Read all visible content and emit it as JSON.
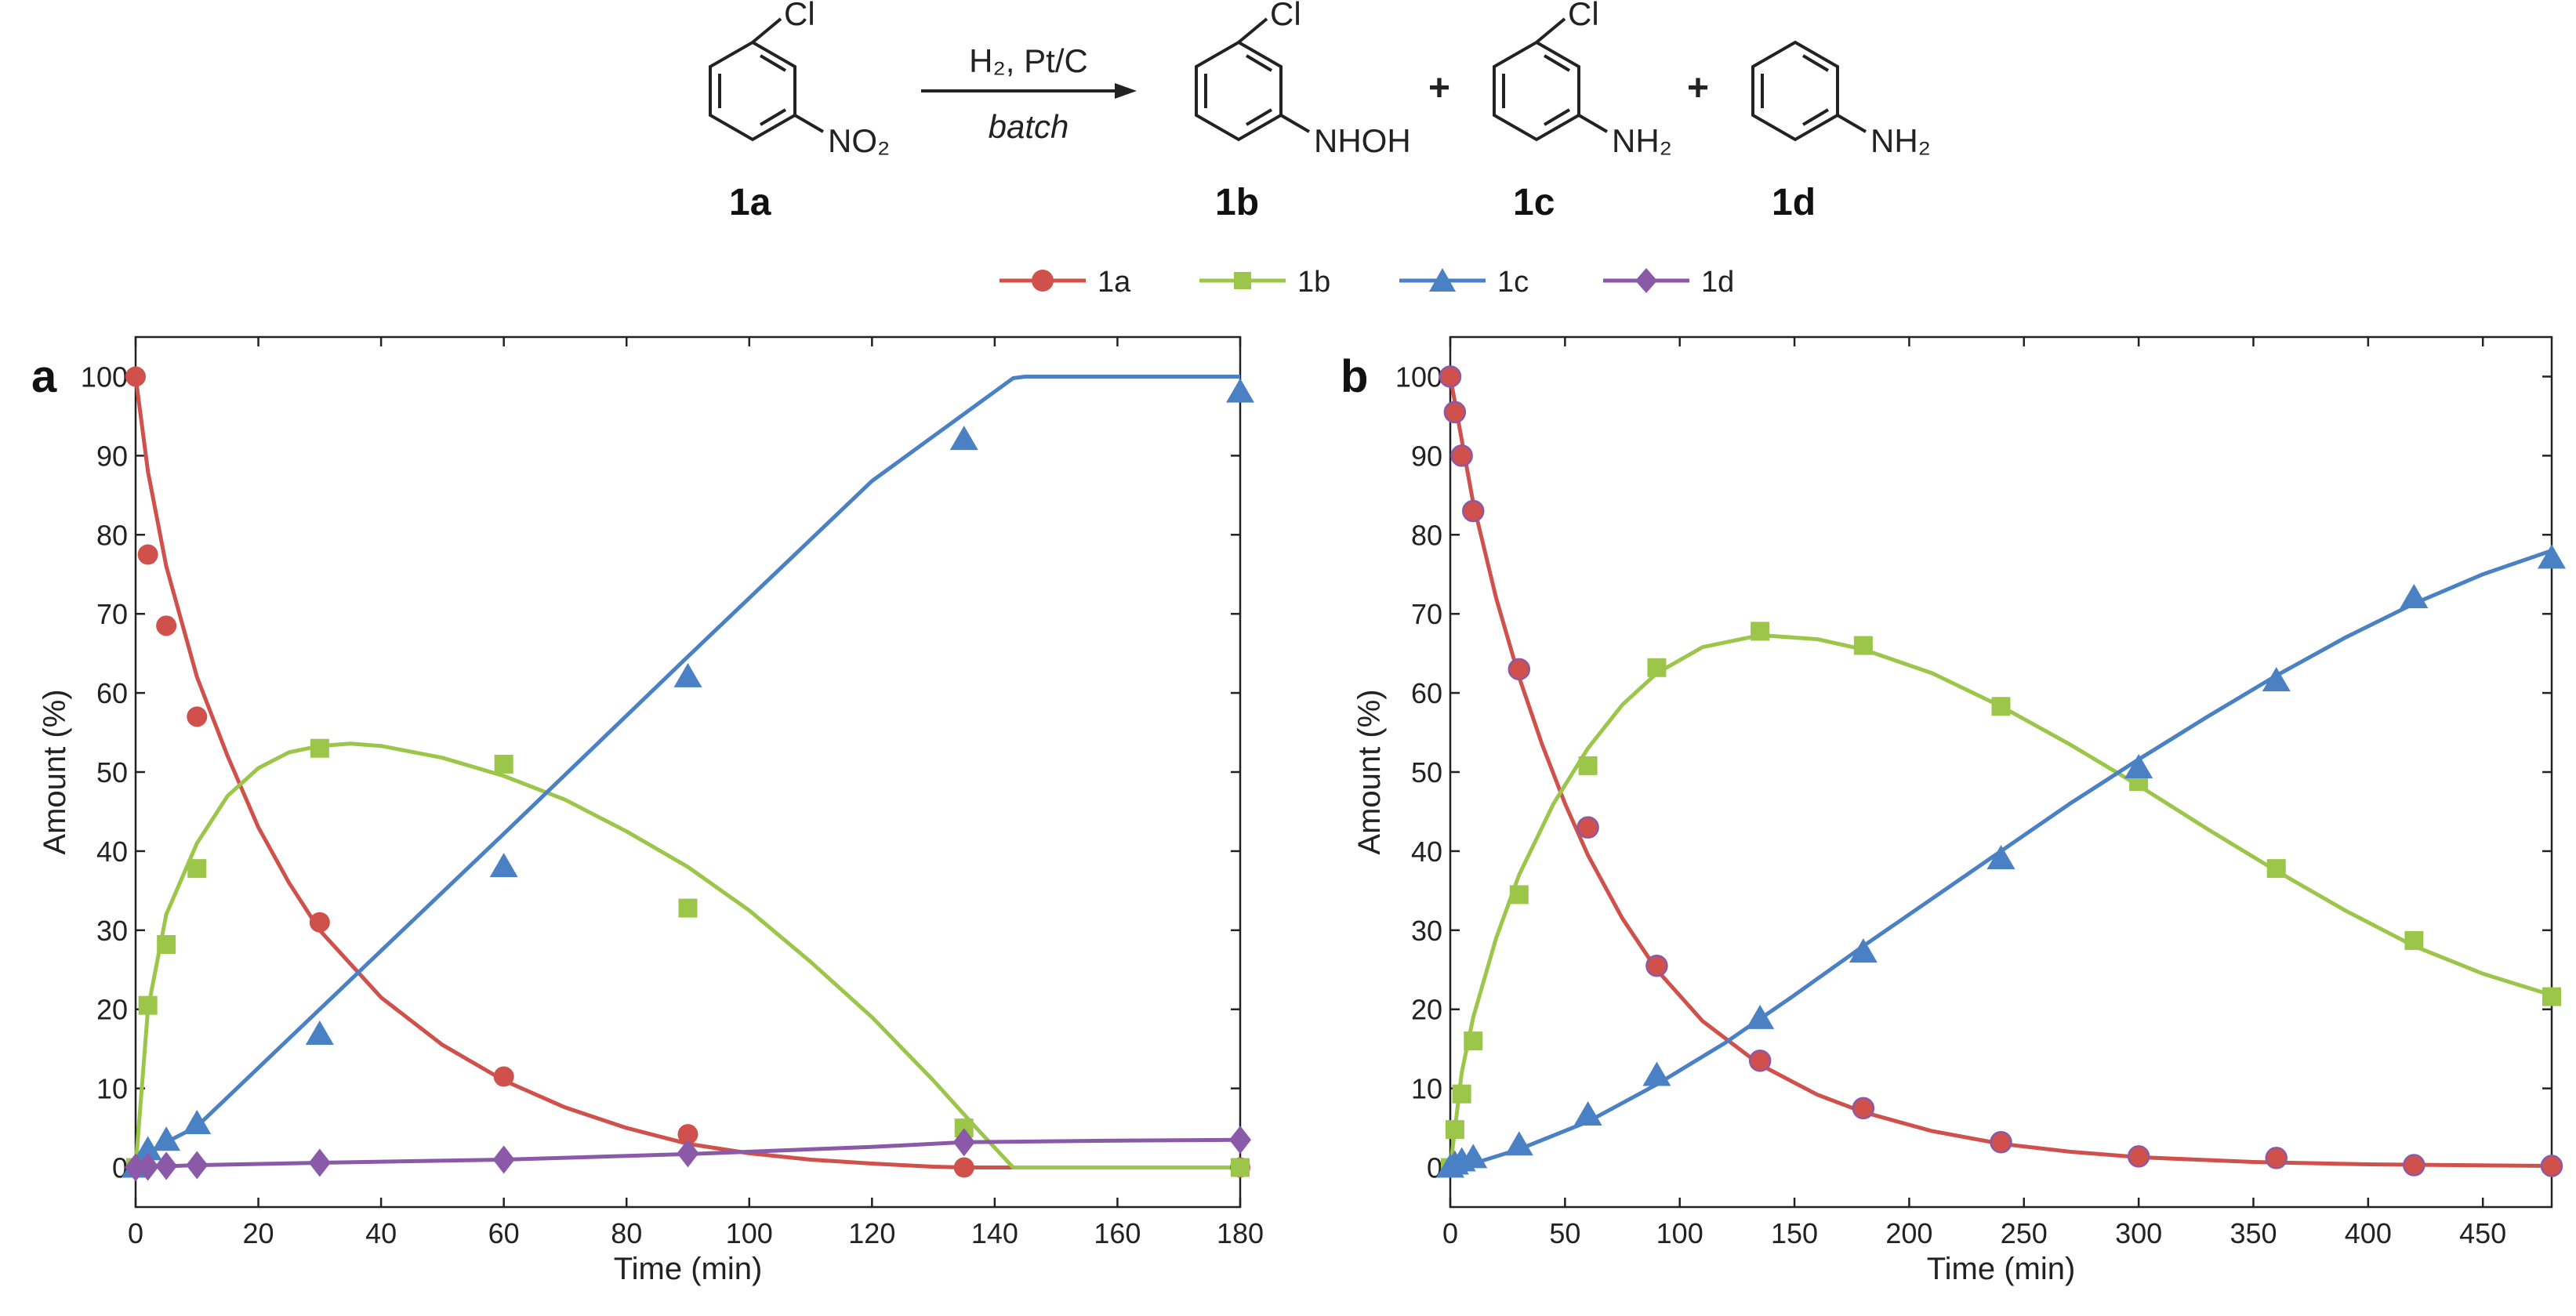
{
  "scheme": {
    "reagents": "H₂, Pt/C",
    "conditions": "batch",
    "plus": "+",
    "compounds": [
      {
        "label": "1a",
        "substituent_top": "Cl",
        "substituent_side": "NO₂"
      },
      {
        "label": "1b",
        "substituent_top": "Cl",
        "substituent_side": "NHOH"
      },
      {
        "label": "1c",
        "substituent_top": "Cl",
        "substituent_side": "NH₂"
      },
      {
        "label": "1d",
        "substituent_top": "",
        "substituent_side": "NH₂"
      }
    ]
  },
  "legend": [
    {
      "name": "1a",
      "color": "#d0504b",
      "marker": "circle"
    },
    {
      "name": "1b",
      "color": "#9bc649",
      "marker": "square"
    },
    {
      "name": "1c",
      "color": "#4a80c4",
      "marker": "triangle"
    },
    {
      "name": "1d",
      "color": "#8a5aa8",
      "marker": "diamond"
    }
  ],
  "chart_data": [
    {
      "panel": "a",
      "type": "scatter",
      "xlabel": "Time (min)",
      "ylabel": "Amount (%)",
      "xlim": [
        0,
        180
      ],
      "ylim": [
        -5,
        105
      ],
      "xticks": [
        0,
        20,
        40,
        60,
        80,
        100,
        120,
        140,
        160,
        180
      ],
      "yticks": [
        0,
        10,
        20,
        30,
        40,
        50,
        60,
        70,
        80,
        90,
        100
      ],
      "series": [
        {
          "name": "1a",
          "color": "#d0504b",
          "marker": "circle",
          "points": [
            [
              0,
              100
            ],
            [
              2,
              77.5
            ],
            [
              5,
              68.5
            ],
            [
              10,
              57
            ],
            [
              30,
              31
            ],
            [
              60,
              11.5
            ],
            [
              90,
              4.2
            ],
            [
              135,
              0
            ],
            [
              180,
              0
            ]
          ],
          "fit": [
            [
              0,
              100
            ],
            [
              2,
              88
            ],
            [
              5,
              76
            ],
            [
              10,
              62
            ],
            [
              15,
              52
            ],
            [
              20,
              43
            ],
            [
              25,
              36
            ],
            [
              30,
              30
            ],
            [
              40,
              21.5
            ],
            [
              50,
              15.5
            ],
            [
              60,
              11
            ],
            [
              70,
              7.6
            ],
            [
              80,
              5
            ],
            [
              90,
              3
            ],
            [
              100,
              1.8
            ],
            [
              110,
              1
            ],
            [
              120,
              0.5
            ],
            [
              130,
              0.1
            ],
            [
              135,
              0
            ],
            [
              180,
              0
            ]
          ]
        },
        {
          "name": "1b",
          "color": "#9bc649",
          "marker": "square",
          "points": [
            [
              0,
              0
            ],
            [
              2,
              20.5
            ],
            [
              5,
              28.2
            ],
            [
              10,
              37.8
            ],
            [
              30,
              53
            ],
            [
              60,
              51
            ],
            [
              90,
              32.8
            ],
            [
              135,
              5
            ],
            [
              180,
              0
            ]
          ],
          "fit": [
            [
              0,
              0
            ],
            [
              2,
              20
            ],
            [
              5,
              32
            ],
            [
              10,
              41
            ],
            [
              15,
              47
            ],
            [
              20,
              50.5
            ],
            [
              25,
              52.5
            ],
            [
              30,
              53.3
            ],
            [
              35,
              53.6
            ],
            [
              40,
              53.3
            ],
            [
              50,
              51.8
            ],
            [
              60,
              49.5
            ],
            [
              70,
              46.5
            ],
            [
              80,
              42.5
            ],
            [
              90,
              38
            ],
            [
              100,
              32.5
            ],
            [
              110,
              26
            ],
            [
              120,
              19
            ],
            [
              130,
              11
            ],
            [
              137,
              5
            ],
            [
              143,
              0
            ],
            [
              180,
              0
            ]
          ]
        },
        {
          "name": "1c",
          "color": "#4a80c4",
          "marker": "triangle",
          "points": [
            [
              0,
              0
            ],
            [
              2,
              2.2
            ],
            [
              5,
              3.4
            ],
            [
              10,
              5.5
            ],
            [
              30,
              16.8
            ],
            [
              60,
              38
            ],
            [
              90,
              62
            ],
            [
              135,
              92
            ],
            [
              180,
              98
            ]
          ],
          "fit": [
            [
              0,
              0
            ],
            [
              2,
              1.9
            ],
            [
              5,
              3.2
            ],
            [
              10,
              5.2
            ],
            [
              30,
              20
            ],
            [
              60,
              42.2
            ],
            [
              90,
              64.6
            ],
            [
              120,
              86.8
            ],
            [
              143,
              99.8
            ],
            [
              145,
              100
            ],
            [
              180,
              100
            ]
          ]
        },
        {
          "name": "1d",
          "color": "#8a5aa8",
          "marker": "diamond",
          "points": [
            [
              0,
              0
            ],
            [
              2,
              0.1
            ],
            [
              5,
              0.2
            ],
            [
              10,
              0.3
            ],
            [
              30,
              0.6
            ],
            [
              60,
              1
            ],
            [
              90,
              1.8
            ],
            [
              135,
              3.2
            ],
            [
              180,
              3.5
            ]
          ],
          "fit": [
            [
              0,
              0
            ],
            [
              10,
              0.3
            ],
            [
              30,
              0.6
            ],
            [
              60,
              1
            ],
            [
              90,
              1.7
            ],
            [
              120,
              2.6
            ],
            [
              135,
              3.2
            ],
            [
              160,
              3.4
            ],
            [
              180,
              3.5
            ]
          ]
        }
      ]
    },
    {
      "panel": "b",
      "type": "scatter",
      "xlabel": "Time (min)",
      "ylabel": "Amount (%)",
      "xlim": [
        0,
        480
      ],
      "ylim": [
        -5,
        105
      ],
      "xticks": [
        0,
        50,
        100,
        150,
        200,
        250,
        300,
        350,
        400,
        450
      ],
      "yticks": [
        0,
        10,
        20,
        30,
        40,
        50,
        60,
        70,
        80,
        90,
        100
      ],
      "series": [
        {
          "name": "1a",
          "color": "#d0504b",
          "marker": "circle",
          "points": [
            [
              0,
              100
            ],
            [
              2,
              95.5
            ],
            [
              5,
              90
            ],
            [
              10,
              83
            ],
            [
              30,
              63
            ],
            [
              60,
              43
            ],
            [
              90,
              25.5
            ],
            [
              135,
              13.5
            ],
            [
              180,
              7.5
            ],
            [
              240,
              3.2
            ],
            [
              300,
              1.4
            ],
            [
              360,
              1.2
            ],
            [
              420,
              0.3
            ],
            [
              480,
              0.2
            ]
          ],
          "fit": [
            [
              0,
              100
            ],
            [
              5,
              92
            ],
            [
              10,
              84
            ],
            [
              20,
              72
            ],
            [
              30,
              62
            ],
            [
              40,
              53.5
            ],
            [
              50,
              46
            ],
            [
              60,
              39.5
            ],
            [
              75,
              31.5
            ],
            [
              90,
              25
            ],
            [
              110,
              18.5
            ],
            [
              135,
              13
            ],
            [
              160,
              9.2
            ],
            [
              180,
              7
            ],
            [
              210,
              4.6
            ],
            [
              240,
              3
            ],
            [
              270,
              2
            ],
            [
              300,
              1.3
            ],
            [
              350,
              0.7
            ],
            [
              400,
              0.4
            ],
            [
              480,
              0.2
            ]
          ]
        },
        {
          "name": "1b",
          "color": "#9bc649",
          "marker": "square",
          "points": [
            [
              0,
              0
            ],
            [
              2,
              4.8
            ],
            [
              5,
              9.3
            ],
            [
              10,
              16
            ],
            [
              30,
              34.5
            ],
            [
              60,
              50.8
            ],
            [
              90,
              63.2
            ],
            [
              135,
              67.8
            ],
            [
              180,
              66
            ],
            [
              240,
              58.3
            ],
            [
              300,
              48.8
            ],
            [
              360,
              37.8
            ],
            [
              420,
              28.7
            ],
            [
              480,
              21.6
            ]
          ],
          "fit": [
            [
              0,
              0
            ],
            [
              5,
              12
            ],
            [
              10,
              19
            ],
            [
              20,
              29
            ],
            [
              30,
              37
            ],
            [
              45,
              46
            ],
            [
              60,
              53
            ],
            [
              75,
              58.5
            ],
            [
              90,
              62.5
            ],
            [
              110,
              65.8
            ],
            [
              135,
              67.3
            ],
            [
              160,
              66.8
            ],
            [
              180,
              65.5
            ],
            [
              210,
              62.5
            ],
            [
              240,
              58.3
            ],
            [
              270,
              53.5
            ],
            [
              300,
              48.3
            ],
            [
              330,
              42.8
            ],
            [
              360,
              37.5
            ],
            [
              390,
              32.5
            ],
            [
              420,
              28
            ],
            [
              450,
              24.5
            ],
            [
              480,
              21.8
            ]
          ]
        },
        {
          "name": "1c",
          "color": "#4a80c4",
          "marker": "triangle",
          "points": [
            [
              0,
              0
            ],
            [
              2,
              0.4
            ],
            [
              5,
              0.8
            ],
            [
              10,
              1.2
            ],
            [
              30,
              2.8
            ],
            [
              60,
              6.6
            ],
            [
              90,
              11.6
            ],
            [
              135,
              18.8
            ],
            [
              180,
              27.2
            ],
            [
              240,
              39
            ],
            [
              300,
              50.5
            ],
            [
              360,
              61.5
            ],
            [
              420,
              72
            ],
            [
              480,
              77
            ]
          ],
          "fit": [
            [
              0,
              0
            ],
            [
              10,
              0.5
            ],
            [
              30,
              2.3
            ],
            [
              60,
              5.8
            ],
            [
              90,
              10.5
            ],
            [
              120,
              15.8
            ],
            [
              150,
              21.8
            ],
            [
              180,
              28
            ],
            [
              210,
              34
            ],
            [
              240,
              40
            ],
            [
              270,
              46
            ],
            [
              300,
              51.6
            ],
            [
              330,
              57
            ],
            [
              360,
              62.2
            ],
            [
              390,
              67
            ],
            [
              420,
              71.3
            ],
            [
              450,
              75
            ],
            [
              480,
              78
            ]
          ]
        }
      ]
    }
  ]
}
